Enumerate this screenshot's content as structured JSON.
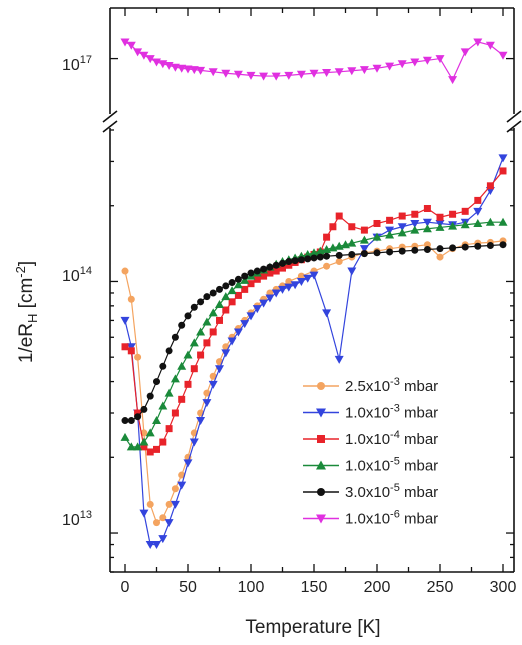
{
  "chart_data": {
    "type": "line",
    "xlabel": "Temperature [K]",
    "ylabel": "1/eR_H [cm^-2]",
    "xlim": [
      -5,
      305
    ],
    "ylim": [
      7000000000000.0,
      400000000000000.0
    ],
    "upper_ylim": [
      8.6e+16,
      1.16e+17
    ],
    "y_scale": "log",
    "axis_break": true,
    "x_ticks": [
      "0",
      "50",
      "100",
      "150",
      "200",
      "250",
      "300"
    ],
    "y_tick_labels": {
      "upper": {
        "mantissa": "10",
        "exp": "17"
      },
      "lower_1e14": {
        "mantissa": "10",
        "exp": "14"
      },
      "lower_1e13": {
        "mantissa": "10",
        "exp": "13"
      }
    },
    "legend_position": "bottom-right",
    "series": [
      {
        "name": "2.5x10^-3 mbar",
        "color": "#f4a460",
        "marker": "circle",
        "panel": "lower",
        "x": [
          0,
          5,
          10,
          15,
          20,
          25,
          30,
          35,
          40,
          45,
          50,
          55,
          60,
          65,
          70,
          75,
          80,
          85,
          90,
          95,
          100,
          105,
          110,
          115,
          120,
          125,
          130,
          140,
          150,
          160,
          170,
          180,
          190,
          200,
          210,
          220,
          230,
          240,
          250,
          260,
          270,
          280,
          290,
          300
        ],
        "y": [
          110000000000000.0,
          85000000000000.0,
          50000000000000.0,
          25000000000000.0,
          13000000000000.0,
          11000000000000.0,
          11500000000000.0,
          13000000000000.0,
          15000000000000.0,
          17000000000000.0,
          20000000000000.0,
          25000000000000.0,
          30000000000000.0,
          36000000000000.0,
          42000000000000.0,
          48000000000000.0,
          55000000000000.0,
          60000000000000.0,
          65000000000000.0,
          70000000000000.0,
          75000000000000.0,
          80000000000000.0,
          85000000000000.0,
          90000000000000.0,
          93000000000000.0,
          96000000000000.0,
          100000000000000.0,
          105000000000000.0,
          110000000000000.0,
          115000000000000.0,
          120000000000000.0,
          125000000000000.0,
          130000000000000.0,
          132000000000000.0,
          135000000000000.0,
          137000000000000.0,
          138000000000000.0,
          140000000000000.0,
          125000000000000.0,
          135000000000000.0,
          140000000000000.0,
          142000000000000.0,
          143000000000000.0,
          145000000000000.0
        ]
      },
      {
        "name": "1.0x10^-3 mbar",
        "color": "#3344dd",
        "marker": "triangle-down",
        "panel": "lower",
        "x": [
          0,
          5,
          10,
          15,
          20,
          25,
          30,
          35,
          40,
          45,
          50,
          55,
          60,
          65,
          70,
          75,
          80,
          85,
          90,
          95,
          100,
          105,
          110,
          115,
          120,
          125,
          130,
          135,
          140,
          145,
          150,
          160,
          170,
          180,
          190,
          200,
          210,
          220,
          230,
          240,
          250,
          260,
          270,
          280,
          290,
          300
        ],
        "y": [
          70000000000000.0,
          55000000000000.0,
          30000000000000.0,
          12000000000000.0,
          9000000000000.0,
          9000000000000.0,
          9500000000000.0,
          11000000000000.0,
          13000000000000.0,
          15500000000000.0,
          19000000000000.0,
          23000000000000.0,
          28000000000000.0,
          33000000000000.0,
          39000000000000.0,
          45000000000000.0,
          52000000000000.0,
          58000000000000.0,
          63000000000000.0,
          68000000000000.0,
          73000000000000.0,
          78000000000000.0,
          82000000000000.0,
          86000000000000.0,
          90000000000000.0,
          93000000000000.0,
          95000000000000.0,
          97000000000000.0,
          100000000000000.0,
          103000000000000.0,
          106000000000000.0,
          75000000000000.0,
          49000000000000.0,
          110000000000000.0,
          135000000000000.0,
          150000000000000.0,
          160000000000000.0,
          165000000000000.0,
          170000000000000.0,
          172000000000000.0,
          170000000000000.0,
          168000000000000.0,
          172000000000000.0,
          190000000000000.0,
          230000000000000.0,
          310000000000000.0
        ]
      },
      {
        "name": "1.0x10^-4 mbar",
        "color": "#e8232a",
        "marker": "square",
        "panel": "lower",
        "x": [
          0,
          5,
          10,
          15,
          20,
          25,
          30,
          35,
          40,
          45,
          50,
          55,
          60,
          65,
          70,
          75,
          80,
          85,
          90,
          95,
          100,
          105,
          110,
          115,
          120,
          125,
          130,
          135,
          140,
          145,
          150,
          155,
          160,
          165,
          170,
          180,
          190,
          200,
          210,
          220,
          230,
          240,
          250,
          260,
          270,
          280,
          290,
          300
        ],
        "y": [
          55000000000000.0,
          53000000000000.0,
          30000000000000.0,
          22000000000000.0,
          21000000000000.0,
          21500000000000.0,
          23000000000000.0,
          26000000000000.0,
          30000000000000.0,
          34000000000000.0,
          39000000000000.0,
          45000000000000.0,
          51000000000000.0,
          57000000000000.0,
          63000000000000.0,
          70000000000000.0,
          77000000000000.0,
          83000000000000.0,
          88000000000000.0,
          93000000000000.0,
          98000000000000.0,
          102000000000000.0,
          105000000000000.0,
          108000000000000.0,
          110000000000000.0,
          113000000000000.0,
          116000000000000.0,
          119000000000000.0,
          122000000000000.0,
          125000000000000.0,
          128000000000000.0,
          131000000000000.0,
          150000000000000.0,
          165000000000000.0,
          182000000000000.0,
          165000000000000.0,
          160000000000000.0,
          170000000000000.0,
          175000000000000.0,
          182000000000000.0,
          185000000000000.0,
          195000000000000.0,
          180000000000000.0,
          185000000000000.0,
          190000000000000.0,
          210000000000000.0,
          240000000000000.0,
          275000000000000.0
        ]
      },
      {
        "name": "1.0x10^-5 mbar",
        "color": "#1a8a3a",
        "marker": "triangle-up",
        "panel": "lower",
        "x": [
          0,
          5,
          10,
          15,
          20,
          25,
          30,
          35,
          40,
          45,
          50,
          55,
          60,
          65,
          70,
          75,
          80,
          85,
          90,
          95,
          100,
          105,
          110,
          115,
          120,
          125,
          130,
          135,
          140,
          145,
          150,
          155,
          160,
          165,
          170,
          175,
          180,
          190,
          200,
          210,
          220,
          230,
          240,
          250,
          260,
          270,
          280,
          290,
          300
        ],
        "y": [
          24000000000000.0,
          22000000000000.0,
          22000000000000.0,
          23000000000000.0,
          25000000000000.0,
          28000000000000.0,
          32000000000000.0,
          36000000000000.0,
          41000000000000.0,
          46000000000000.0,
          51000000000000.0,
          57000000000000.0,
          63000000000000.0,
          69000000000000.0,
          75000000000000.0,
          81000000000000.0,
          87000000000000.0,
          92000000000000.0,
          97000000000000.0,
          101000000000000.0,
          105000000000000.0,
          108000000000000.0,
          111000000000000.0,
          114000000000000.0,
          117000000000000.0,
          120000000000000.0,
          122000000000000.0,
          124000000000000.0,
          126000000000000.0,
          128000000000000.0,
          130000000000000.0,
          132000000000000.0,
          134000000000000.0,
          136000000000000.0,
          138000000000000.0,
          140000000000000.0,
          142000000000000.0,
          146000000000000.0,
          150000000000000.0,
          153000000000000.0,
          156000000000000.0,
          160000000000000.0,
          162000000000000.0,
          164000000000000.0,
          166000000000000.0,
          168000000000000.0,
          170000000000000.0,
          172000000000000.0,
          172000000000000.0
        ]
      },
      {
        "name": "3.0x10^-5 mbar",
        "color": "#111111",
        "marker": "circle",
        "panel": "lower",
        "x": [
          0,
          5,
          10,
          15,
          20,
          25,
          30,
          35,
          40,
          45,
          50,
          55,
          60,
          65,
          70,
          75,
          80,
          85,
          90,
          95,
          100,
          105,
          110,
          115,
          120,
          125,
          130,
          135,
          140,
          145,
          150,
          155,
          160,
          170,
          180,
          190,
          200,
          210,
          220,
          230,
          240,
          250,
          260,
          270,
          280,
          290,
          300
        ],
        "y": [
          28000000000000.0,
          28000000000000.0,
          29000000000000.0,
          31000000000000.0,
          35000000000000.0,
          40000000000000.0,
          46000000000000.0,
          53000000000000.0,
          60000000000000.0,
          67000000000000.0,
          73000000000000.0,
          79000000000000.0,
          83000000000000.0,
          87000000000000.0,
          90000000000000.0,
          93000000000000.0,
          96000000000000.0,
          99000000000000.0,
          102000000000000.0,
          105000000000000.0,
          108000000000000.0,
          110000000000000.0,
          112000000000000.0,
          114000000000000.0,
          116000000000000.0,
          118000000000000.0,
          120000000000000.0,
          121000000000000.0,
          122000000000000.0,
          123000000000000.0,
          124000000000000.0,
          125000000000000.0,
          126000000000000.0,
          127000000000000.0,
          128000000000000.0,
          129000000000000.0,
          130000000000000.0,
          131000000000000.0,
          132000000000000.0,
          133000000000000.0,
          134000000000000.0,
          135000000000000.0,
          136000000000000.0,
          137000000000000.0,
          138000000000000.0,
          139000000000000.0,
          140000000000000.0
        ]
      },
      {
        "name": "1.0x10^-6 mbar",
        "color": "#e030e0",
        "marker": "triangle-down",
        "panel": "upper",
        "x": [
          0,
          5,
          10,
          15,
          20,
          25,
          30,
          35,
          40,
          45,
          50,
          55,
          60,
          70,
          80,
          90,
          100,
          110,
          120,
          130,
          140,
          150,
          160,
          170,
          180,
          190,
          200,
          210,
          220,
          230,
          240,
          250,
          260,
          270,
          280,
          290,
          300
        ],
        "y": [
          1.05e+17,
          1.04e+17,
          1.02e+17,
          1.01e+17,
          1e+17,
          9.9e+16,
          9.85e+16,
          9.8e+16,
          9.75e+16,
          9.72e+16,
          9.7e+16,
          9.68e+16,
          9.66e+16,
          9.62e+16,
          9.58e+16,
          9.55e+16,
          9.52e+16,
          9.5e+16,
          9.5e+16,
          9.52e+16,
          9.55e+16,
          9.58e+16,
          9.6e+16,
          9.62e+16,
          9.65e+16,
          9.68e+16,
          9.72e+16,
          9.78e+16,
          9.85e+16,
          9.9e+16,
          9.95e+16,
          1e+17,
          9.4e+16,
          1.02e+17,
          1.05e+17,
          1.04e+17,
          1.01e+17
        ]
      }
    ]
  }
}
